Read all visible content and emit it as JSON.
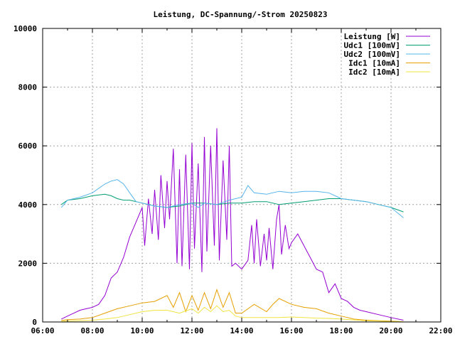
{
  "chart_data": {
    "type": "line",
    "title": "Leistung, DC-Spannung/-Strom 20250823",
    "xlabel": "",
    "ylabel": "",
    "xlim": [
      6,
      22
    ],
    "ylim": [
      0,
      10000
    ],
    "grid": true,
    "legend_position": "top-right",
    "x_ticks": [
      "06:00",
      "08:00",
      "10:00",
      "12:00",
      "14:00",
      "16:00",
      "18:00",
      "20:00",
      "22:00"
    ],
    "y_ticks": [
      "0",
      "2000",
      "4000",
      "6000",
      "8000",
      "10000"
    ],
    "x_unit": "hours",
    "series": [
      {
        "name": "Leistung [W]",
        "color": "#9400d3",
        "x": [
          6.75,
          7,
          7.25,
          7.5,
          7.75,
          8,
          8.25,
          8.5,
          8.75,
          9,
          9.25,
          9.5,
          9.75,
          10,
          10.1,
          10.25,
          10.4,
          10.5,
          10.65,
          10.75,
          10.9,
          11,
          11.1,
          11.25,
          11.4,
          11.5,
          11.6,
          11.75,
          11.9,
          12,
          12.1,
          12.25,
          12.4,
          12.5,
          12.6,
          12.75,
          12.9,
          13,
          13.1,
          13.25,
          13.4,
          13.5,
          13.6,
          13.75,
          14,
          14.25,
          14.4,
          14.5,
          14.6,
          14.75,
          14.9,
          15,
          15.1,
          15.25,
          15.4,
          15.5,
          15.6,
          15.75,
          15.9,
          16,
          16.25,
          16.5,
          16.75,
          17,
          17.25,
          17.5,
          17.75,
          18,
          18.25,
          18.5,
          18.75,
          19,
          19.5,
          20,
          20.5
        ],
        "y": [
          100,
          200,
          300,
          400,
          450,
          500,
          600,
          900,
          1500,
          1700,
          2200,
          2900,
          3400,
          3900,
          2600,
          4200,
          3000,
          4500,
          2800,
          5000,
          3200,
          4800,
          3500,
          5900,
          2000,
          5200,
          1900,
          5700,
          1800,
          6100,
          2500,
          5400,
          1700,
          6300,
          2400,
          6000,
          2600,
          6600,
          2100,
          5500,
          2800,
          6000,
          1900,
          2000,
          1800,
          2100,
          3300,
          2000,
          3500,
          1900,
          3000,
          2100,
          3200,
          1800,
          3500,
          4000,
          2300,
          3300,
          2500,
          2700,
          3000,
          2600,
          2200,
          1800,
          1700,
          1000,
          1300,
          800,
          700,
          500,
          400,
          350,
          250,
          150,
          60
        ]
      },
      {
        "name": "Udc1 [100mV]",
        "color": "#009e73",
        "x": [
          6.75,
          7,
          7.5,
          8,
          8.5,
          8.75,
          9,
          9.25,
          9.5,
          10,
          10.5,
          11,
          11.5,
          12,
          12.5,
          13,
          13.5,
          14,
          14.5,
          15,
          15.5,
          16,
          16.5,
          17,
          17.5,
          18,
          18.5,
          19,
          19.5,
          20,
          20.5
        ],
        "y": [
          4000,
          4150,
          4200,
          4300,
          4350,
          4300,
          4200,
          4150,
          4150,
          4050,
          3950,
          3900,
          3950,
          4050,
          4050,
          4000,
          4050,
          4050,
          4100,
          4100,
          4000,
          4050,
          4100,
          4150,
          4200,
          4200,
          4150,
          4100,
          4000,
          3900,
          3750
        ]
      },
      {
        "name": "Udc2 [100mV]",
        "color": "#56b4e9",
        "x": [
          6.75,
          7,
          7.5,
          8,
          8.5,
          8.75,
          9,
          9.25,
          9.5,
          9.75,
          10,
          10.5,
          11,
          11.5,
          12,
          12.25,
          12.5,
          13,
          13.5,
          14,
          14.25,
          14.5,
          15,
          15.5,
          16,
          16.5,
          17,
          17.5,
          18,
          18.5,
          19,
          19.5,
          20,
          20.5
        ],
        "y": [
          3900,
          4150,
          4250,
          4400,
          4700,
          4800,
          4850,
          4700,
          4400,
          4100,
          4050,
          3950,
          3900,
          4000,
          4050,
          3900,
          4050,
          4000,
          4150,
          4250,
          4650,
          4400,
          4350,
          4450,
          4400,
          4450,
          4450,
          4400,
          4200,
          4150,
          4100,
          4000,
          3900,
          3550
        ]
      },
      {
        "name": "Idc1 [10mA]",
        "color": "#e69f00",
        "x": [
          6.75,
          7,
          7.5,
          8,
          8.5,
          9,
          9.5,
          10,
          10.5,
          11,
          11.25,
          11.5,
          11.75,
          12,
          12.25,
          12.5,
          12.75,
          13,
          13.25,
          13.5,
          13.75,
          14,
          14.5,
          15,
          15.25,
          15.5,
          16,
          16.5,
          17,
          17.5,
          18,
          18.5,
          19,
          19.5,
          20,
          20.5
        ],
        "y": [
          50,
          80,
          100,
          150,
          300,
          450,
          550,
          650,
          700,
          900,
          500,
          1000,
          350,
          900,
          400,
          1000,
          450,
          1100,
          500,
          1000,
          300,
          300,
          600,
          350,
          600,
          800,
          600,
          500,
          450,
          300,
          200,
          100,
          60,
          40,
          30,
          10
        ]
      },
      {
        "name": "Idc2 [10mA]",
        "color": "#f0e442",
        "x": [
          6.75,
          7,
          7.5,
          8,
          8.5,
          9,
          9.5,
          10,
          10.5,
          11,
          11.5,
          12,
          12.25,
          12.5,
          12.75,
          13,
          13.25,
          13.5,
          13.75,
          14,
          14.5,
          15,
          15.5,
          16,
          16.5,
          17,
          17.5,
          18,
          18.5,
          19,
          19.5,
          20,
          20.5
        ],
        "y": [
          20,
          30,
          40,
          60,
          100,
          150,
          250,
          350,
          400,
          400,
          300,
          450,
          300,
          500,
          350,
          550,
          350,
          400,
          200,
          150,
          150,
          150,
          150,
          170,
          150,
          130,
          120,
          100,
          70,
          40,
          30,
          20,
          10
        ]
      }
    ]
  }
}
